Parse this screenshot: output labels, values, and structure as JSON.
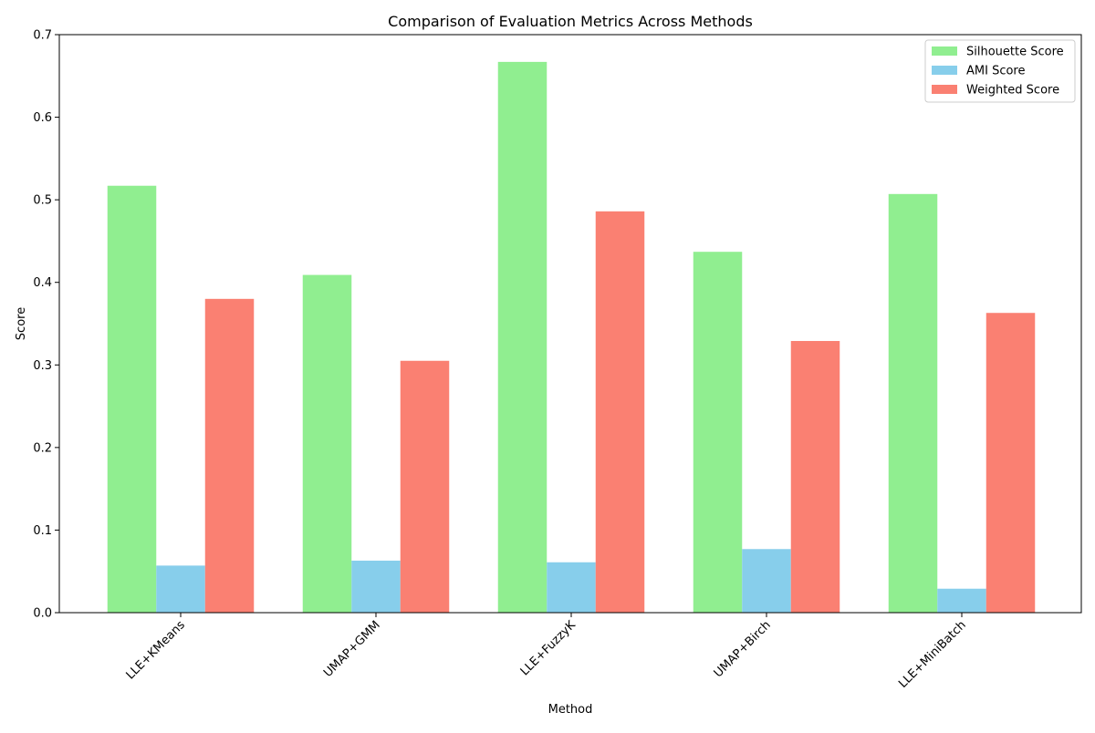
{
  "chart_data": {
    "type": "bar",
    "title": "Comparison of Evaluation Metrics Across Methods",
    "xlabel": "Method",
    "ylabel": "Score",
    "categories": [
      "LLE+KMeans",
      "UMAP+GMM",
      "LLE+FuzzyK",
      "UMAP+Birch",
      "LLE+MiniBatch"
    ],
    "series": [
      {
        "name": "Silhouette Score",
        "color": "#90ee90",
        "values": [
          0.517,
          0.409,
          0.667,
          0.437,
          0.507
        ]
      },
      {
        "name": "AMI Score",
        "color": "#87ceeb",
        "values": [
          0.057,
          0.063,
          0.061,
          0.077,
          0.029
        ]
      },
      {
        "name": "Weighted Score",
        "color": "#fa8072",
        "values": [
          0.38,
          0.305,
          0.486,
          0.329,
          0.363
        ]
      }
    ],
    "ylim": [
      0,
      0.7
    ],
    "yticks": [
      "0.0",
      "0.1",
      "0.2",
      "0.3",
      "0.4",
      "0.5",
      "0.6",
      "0.7"
    ],
    "grid": false,
    "legend_position": "top-right"
  }
}
